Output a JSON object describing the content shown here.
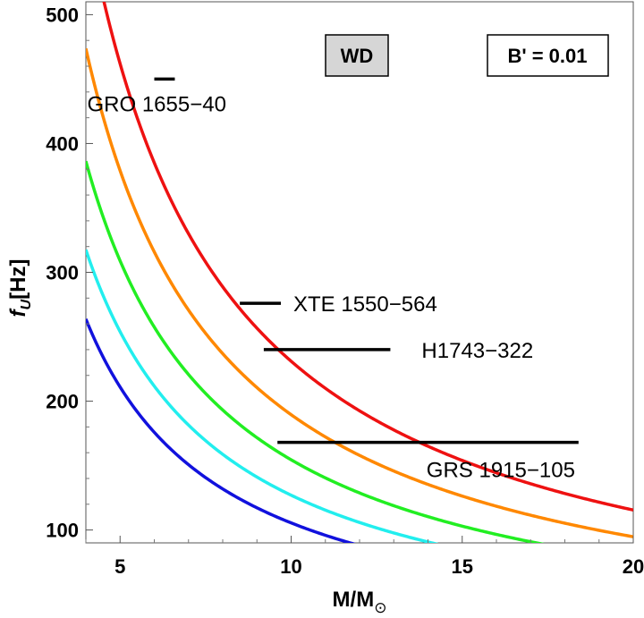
{
  "chart_data": {
    "type": "line",
    "title": "",
    "xlabel": "M/M",
    "xlabel_sub": "⊙",
    "ylabel": "f",
    "ylabel_sub": "U",
    "ylabel_unit": "[Hz]",
    "xlim": [
      4,
      20
    ],
    "ylim": [
      90,
      510
    ],
    "x_ticks": [
      5,
      10,
      15,
      20
    ],
    "x_tick_labels": [
      "5",
      "10",
      "15",
      "20"
    ],
    "y_ticks": [
      100,
      200,
      300,
      400,
      500
    ],
    "y_tick_labels": [
      "100",
      "200",
      "300",
      "400",
      "500"
    ],
    "grid": false,
    "annotations": {
      "wd_box": "WD",
      "b_box": "B' = 0.01"
    },
    "series": [
      {
        "name": "curve-red",
        "color": "#ee1111",
        "k": 2310
      },
      {
        "name": "curve-orange",
        "color": "#ff8800",
        "k": 1895
      },
      {
        "name": "curve-green",
        "color": "#22ee22",
        "k": 1545
      },
      {
        "name": "curve-cyan",
        "color": "#22eeee",
        "k": 1270
      },
      {
        "name": "curve-blue",
        "color": "#1111dd",
        "k": 1055
      }
    ],
    "sources": [
      {
        "name": "GRO 1655-40",
        "label": "GRO 1655−40",
        "m_min": 6.0,
        "m_max": 6.6,
        "f": 450
      },
      {
        "name": "XTE 1550-564",
        "label": "XTE 1550−564",
        "m_min": 8.5,
        "m_max": 9.7,
        "f": 276
      },
      {
        "name": "H1743-322",
        "label": "H1743−322",
        "m_min": 9.2,
        "m_max": 12.9,
        "f": 240
      },
      {
        "name": "GRS 1915-105",
        "label": "GRS 1915−105",
        "m_min": 9.6,
        "m_max": 18.4,
        "f": 168
      }
    ]
  }
}
